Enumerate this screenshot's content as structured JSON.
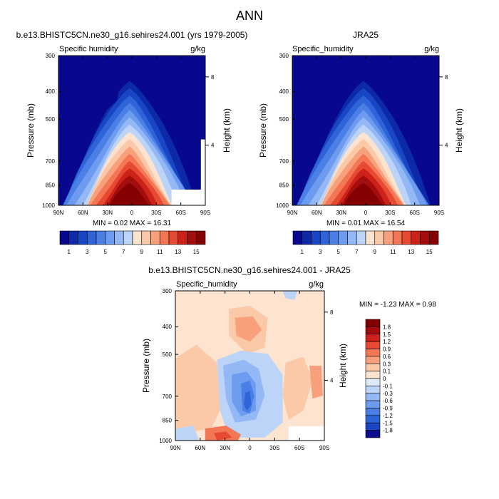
{
  "page_title": "ANN",
  "colors": {
    "blues": [
      "#08088f",
      "#0c2aa8",
      "#1846c4",
      "#2f63d8",
      "#4b7fe6",
      "#6c9bef",
      "#93b8f5",
      "#bcd4f8"
    ],
    "pale": "#fbe3d0",
    "reds": [
      "#fbc8a8",
      "#f8a07c",
      "#f37655",
      "#e74a32",
      "#cc2219",
      "#a30d0d",
      "#850000"
    ],
    "white": "#ffffff"
  },
  "chart_data": [
    {
      "type": "heatmap",
      "panel": "model",
      "title": "b.e13.BHISTC5CN.ne30_g16.sehires24.001 (yrs 1979-2005)",
      "variable": "Specific humidity",
      "units": "g/kg",
      "ylabel": "Pressure (mb)",
      "ylabel_right": "Height (km)",
      "x_ticks": [
        "90N",
        "60N",
        "30N",
        "0",
        "30S",
        "60S",
        "90S"
      ],
      "y_ticks": [
        "300",
        "400",
        "500",
        "700",
        "850",
        "1000"
      ],
      "y_ticks_right": [
        "8",
        "4"
      ],
      "min": "0.02",
      "max": "16.31",
      "stats_text": "MIN =  0.02  MAX =  16.31",
      "colorbar_labels": [
        "1",
        "3",
        "5",
        "7",
        "9",
        "11",
        "13",
        "15"
      ]
    },
    {
      "type": "heatmap",
      "panel": "obs",
      "title": "JRA25",
      "variable": "Specific_humidity",
      "units": "g/kg",
      "ylabel": "Pressure (mb)",
      "ylabel_right": "Height (km)",
      "x_ticks": [
        "90N",
        "60N",
        "30N",
        "0",
        "30S",
        "60S",
        "90S"
      ],
      "y_ticks": [
        "300",
        "400",
        "500",
        "700",
        "850",
        "1000"
      ],
      "y_ticks_right": [
        "8",
        "4"
      ],
      "min": "0.01",
      "max": "16.54",
      "stats_text": "MIN =  0.01  MAX =  16.54",
      "colorbar_labels": [
        "1",
        "3",
        "5",
        "7",
        "9",
        "11",
        "13",
        "15"
      ]
    },
    {
      "type": "heatmap",
      "panel": "diff",
      "title": "b.e13.BHISTC5CN.ne30_g16.sehires24.001 - JRA25",
      "variable": "Specific_humidity",
      "units": "g/kg",
      "ylabel": "Pressure (mb)",
      "ylabel_right": "Height (km)",
      "x_ticks": [
        "90N",
        "60N",
        "30N",
        "0",
        "30S",
        "60S",
        "90S"
      ],
      "y_ticks": [
        "300",
        "400",
        "500",
        "700",
        "850",
        "1000"
      ],
      "y_ticks_right": [
        "8",
        "4"
      ],
      "min": "-1.23",
      "max": "0.98",
      "stats_text": "MIN =  -1.23  MAX =   0.98",
      "colorbar_labels": [
        "1.8",
        "1.5",
        "1.2",
        "0.9",
        "0.6",
        "0.3",
        "0.1",
        "0",
        "-0.1",
        "-0.3",
        "-0.6",
        "-0.9",
        "-1.2",
        "-1.5",
        "-1.8"
      ]
    }
  ]
}
